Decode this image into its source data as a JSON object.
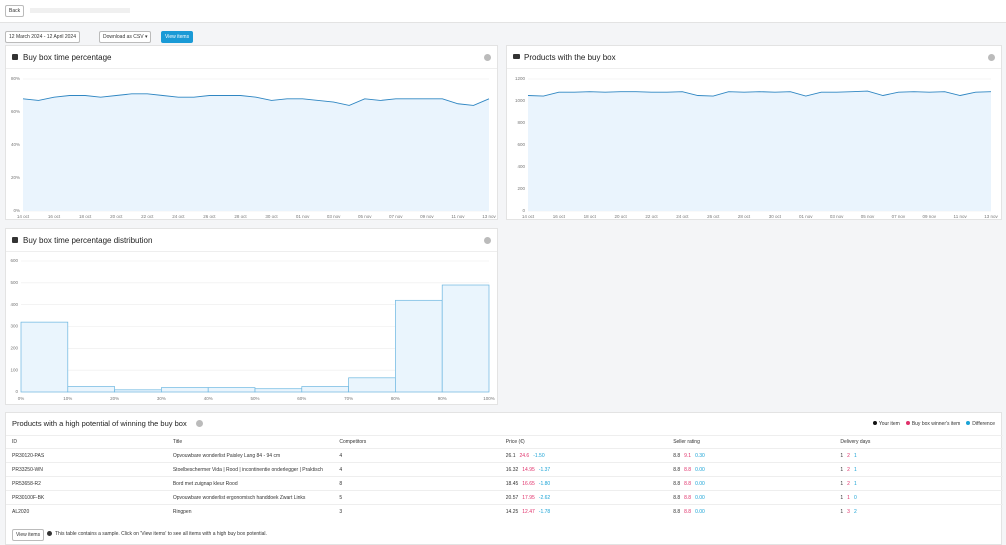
{
  "header": {
    "back": "Back"
  },
  "toolbar": {
    "date_range": "12 March 2024 - 12 April 2024",
    "download": "Download as CSV",
    "view_items": "View items"
  },
  "chart_data": [
    {
      "type": "line",
      "title": "Buy box time percentage",
      "categories": [
        "14 oct",
        null,
        "16 oct",
        null,
        "18 oct",
        null,
        "20 oct",
        null,
        "22 oct",
        null,
        "24 oct",
        null,
        "26 oct",
        null,
        "28 oct",
        null,
        "30 oct",
        null,
        "01 nov",
        null,
        "03 nov",
        null,
        "05 nov",
        null,
        "07 nov",
        null,
        "09 nov",
        null,
        "11 nov",
        null,
        "13 nov"
      ],
      "values": [
        68,
        67,
        69,
        70,
        70,
        69,
        70,
        71,
        71,
        70,
        69,
        69,
        70,
        70,
        70,
        69,
        67,
        68,
        68,
        67,
        66,
        64,
        68,
        67,
        68,
        68,
        68,
        68,
        65,
        64,
        68
      ],
      "color": "#2f86c2",
      "area_color": "#eaf4fd",
      "ylim": [
        0,
        80
      ],
      "yticks": [
        {
          "value": 0,
          "label": "0%"
        },
        {
          "value": 20,
          "label": "20%"
        },
        {
          "value": 40,
          "label": "40%"
        },
        {
          "value": 60,
          "label": "60%"
        },
        {
          "value": 80,
          "label": "80%"
        }
      ],
      "grid": true
    },
    {
      "type": "line",
      "title": "Products with the buy box",
      "categories": [
        "14 oct",
        null,
        "16 oct",
        null,
        "18 oct",
        null,
        "20 oct",
        null,
        "22 oct",
        null,
        "24 oct",
        null,
        "26 oct",
        null,
        "28 oct",
        null,
        "30 oct",
        null,
        "01 nov",
        null,
        "03 nov",
        null,
        "05 nov",
        null,
        "07 nov",
        null,
        "09 nov",
        null,
        "11 nov",
        null,
        "13 nov"
      ],
      "values": [
        1050,
        1045,
        1080,
        1080,
        1085,
        1080,
        1085,
        1085,
        1080,
        1080,
        1085,
        1050,
        1045,
        1085,
        1080,
        1085,
        1080,
        1085,
        1045,
        1080,
        1080,
        1085,
        1090,
        1050,
        1080,
        1085,
        1080,
        1085,
        1050,
        1080,
        1085
      ],
      "color": "#2f86c2",
      "area_color": "#eaf4fd",
      "ylim": [
        0,
        1200
      ],
      "yticks": [
        0,
        200,
        400,
        600,
        800,
        1000,
        1200
      ],
      "grid": true
    },
    {
      "type": "histogram",
      "title": "Buy box time percentage distribution",
      "bins": [
        0,
        10,
        20,
        30,
        40,
        50,
        60,
        70,
        80,
        90,
        100
      ],
      "values": [
        320,
        25,
        10,
        20,
        20,
        15,
        25,
        65,
        420,
        490
      ],
      "color": "#eaf5fd",
      "edge_color": "#6bb6e0",
      "xlim": [
        0,
        100
      ],
      "xticks": [
        {
          "value": 0,
          "label": "0%"
        },
        {
          "value": 10,
          "label": "10%"
        },
        {
          "value": 20,
          "label": "20%"
        },
        {
          "value": 30,
          "label": "30%"
        },
        {
          "value": 40,
          "label": "40%"
        },
        {
          "value": 50,
          "label": "50%"
        },
        {
          "value": 60,
          "label": "60%"
        },
        {
          "value": 70,
          "label": "70%"
        },
        {
          "value": 80,
          "label": "80%"
        },
        {
          "value": 90,
          "label": "90%"
        },
        {
          "value": 100,
          "label": "100%"
        }
      ],
      "ylim": [
        0,
        600
      ],
      "yticks": [
        0,
        100,
        200,
        300,
        400,
        500,
        600
      ],
      "grid": true
    }
  ],
  "table": {
    "title": "Products with a high potential of winning the buy box",
    "legend": [
      "Your item",
      "Buy box winner's item",
      "Difference"
    ],
    "columns": [
      "ID",
      "Title",
      "Competitors",
      "Price (€)",
      "Seller rating",
      "Delivery days"
    ],
    "rows": [
      [
        "PR30120-PAS",
        "Opvouwbare wonderlist Paisley Lang 84 - 94 cm",
        "4",
        [
          "26.1",
          "24.6",
          "-1.50"
        ],
        [
          "8.8",
          "9.1",
          "0.30"
        ],
        [
          "1",
          "2",
          "1"
        ]
      ],
      [
        "PR33250-WN",
        "Stoelbeschermer Vida | Rood | incontinentie onderlegger | Praktisch",
        "4",
        [
          "16.32",
          "14.95",
          "-1.37"
        ],
        [
          "8.8",
          "8.8",
          "0.00"
        ],
        [
          "1",
          "2",
          "1"
        ]
      ],
      [
        "PR53658-R2",
        "Bord met zuignap kleur Rood",
        "8",
        [
          "18.45",
          "16.65",
          "-1.80"
        ],
        [
          "8.8",
          "8.8",
          "0.00"
        ],
        [
          "1",
          "2",
          "1"
        ]
      ],
      [
        "PR30100F-BK",
        "Opvouwbare wonderlist ergonomisch handdoek Zwart Links",
        "5",
        [
          "20.57",
          "17.95",
          "-2.62"
        ],
        [
          "8.8",
          "8.8",
          "0.00"
        ],
        [
          "1",
          "1",
          "0"
        ]
      ],
      [
        "AL2020",
        "Ringpen",
        "3",
        [
          "14.25",
          "12.47",
          "-1.78"
        ],
        [
          "8.8",
          "8.8",
          "0.00"
        ],
        [
          "1",
          "3",
          "2"
        ]
      ]
    ],
    "footer": {
      "button": "View items",
      "note": "This table contains a sample. Click on 'View items' to see all items with a high buy box potential."
    }
  }
}
